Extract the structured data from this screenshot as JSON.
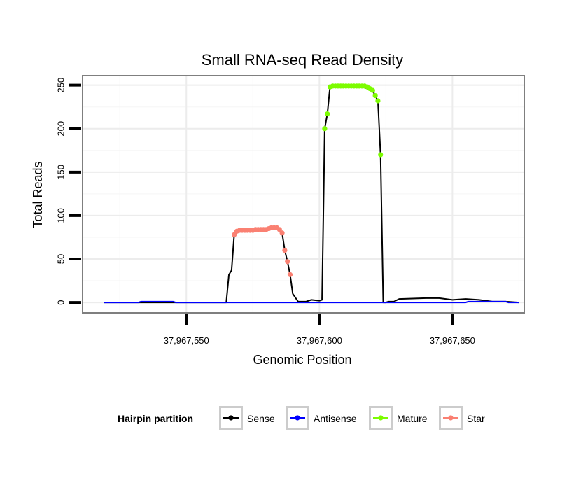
{
  "chart_data": {
    "type": "line",
    "title": "Small RNA-seq Read Density",
    "xlabel": "Genomic Position",
    "ylabel": "Total Reads",
    "xlim": [
      37967511,
      37967677
    ],
    "ylim": [
      -12,
      261
    ],
    "x_ticks": [
      37967550,
      37967600,
      37967650
    ],
    "x_tick_labels": [
      "37,967,550",
      "37,967,600",
      "37,967,650"
    ],
    "y_ticks": [
      0,
      50,
      100,
      150,
      200,
      250
    ],
    "y_tick_labels": [
      "0",
      "50",
      "100",
      "150",
      "200",
      "250"
    ],
    "grid": true,
    "legend": {
      "title": "Hairpin partition",
      "position": "bottom",
      "entries": [
        {
          "name": "Sense",
          "color": "#000000"
        },
        {
          "name": "Antisense",
          "color": "#0000ff"
        },
        {
          "name": "Mature",
          "color": "#7cfc00"
        },
        {
          "name": "Star",
          "color": "#fa8072"
        }
      ]
    },
    "series": [
      {
        "name": "Sense",
        "color": "#000000",
        "markers": false,
        "x": [
          37967519,
          37967547,
          37967552,
          37967565,
          37967566,
          37967567,
          37967568,
          37967570,
          37967575,
          37967580,
          37967582,
          37967585,
          37967586,
          37967587,
          37967588,
          37967589,
          37967590,
          37967592,
          37967595,
          37967597,
          37967600,
          37967601,
          37967602,
          37967603,
          37967604,
          37967605,
          37967610,
          37967615,
          37967620,
          37967621,
          37967622,
          37967623,
          37967624,
          37967625,
          37967626,
          37967628,
          37967630,
          37967640,
          37967645,
          37967650,
          37967655,
          37967660,
          37967665,
          37967670,
          37967675
        ],
        "y": [
          0,
          0,
          0,
          0,
          32,
          37,
          78,
          83,
          83,
          84,
          86,
          85,
          80,
          60,
          47,
          32,
          10,
          1,
          1,
          3,
          2,
          3,
          200,
          217,
          248,
          249,
          249,
          249,
          244,
          238,
          232,
          170,
          0,
          0,
          1,
          1,
          4,
          5,
          5,
          3,
          4,
          3,
          1,
          1,
          0
        ]
      },
      {
        "name": "Antisense",
        "color": "#0000ff",
        "markers": false,
        "x": [
          37967519,
          37967532,
          37967533,
          37967545,
          37967546,
          37967600,
          37967650,
          37967655,
          37967656,
          37967670,
          37967671,
          37967675
        ],
        "y": [
          0,
          0,
          1,
          1,
          0,
          0,
          0,
          0,
          1,
          1,
          0,
          0
        ]
      },
      {
        "name": "Mature",
        "color": "#7cfc00",
        "markers": true,
        "x": [
          37967602,
          37967603,
          37967604,
          37967605,
          37967606,
          37967607,
          37967608,
          37967609,
          37967610,
          37967611,
          37967612,
          37967613,
          37967614,
          37967615,
          37967616,
          37967617,
          37967618,
          37967619,
          37967620,
          37967621,
          37967622,
          37967623
        ],
        "y": [
          200,
          217,
          248,
          249,
          249,
          249,
          249,
          249,
          249,
          249,
          249,
          249,
          249,
          249,
          249,
          249,
          248,
          246,
          244,
          238,
          232,
          170
        ]
      },
      {
        "name": "Star",
        "color": "#fa8072",
        "markers": true,
        "x": [
          37967568,
          37967569,
          37967570,
          37967571,
          37967572,
          37967573,
          37967574,
          37967575,
          37967576,
          37967577,
          37967578,
          37967579,
          37967580,
          37967581,
          37967582,
          37967583,
          37967584,
          37967585,
          37967586,
          37967587,
          37967588,
          37967589
        ],
        "y": [
          78,
          82,
          83,
          83,
          83,
          83,
          83,
          83,
          84,
          84,
          84,
          84,
          84,
          85,
          86,
          86,
          86,
          84,
          80,
          60,
          47,
          32
        ]
      }
    ]
  }
}
